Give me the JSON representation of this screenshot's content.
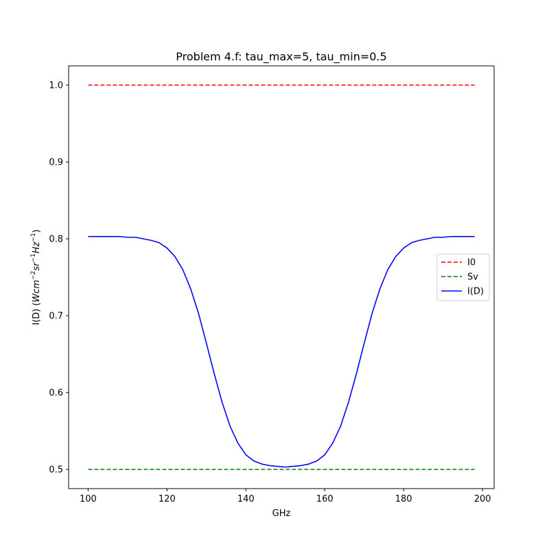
{
  "chart_data": {
    "type": "line",
    "title": "Problem 4.f: tau_max=5, tau_min=0.5",
    "xlabel": "GHz",
    "ylabel": {
      "prefix": "I(D) (",
      "parts": [
        {
          "text": "Wcm",
          "sup": "−2"
        },
        {
          "text": "sr",
          "sup": "−1"
        },
        {
          "text": "Hz",
          "sup": "−1"
        }
      ],
      "suffix": ")"
    },
    "xlim": [
      95.06,
      202.94
    ],
    "ylim": [
      0.475,
      1.025
    ],
    "xticks": [
      100,
      120,
      140,
      160,
      180,
      200
    ],
    "xtick_labels": [
      "100",
      "120",
      "140",
      "160",
      "180",
      "200"
    ],
    "yticks": [
      0.5,
      0.6,
      0.7,
      0.8,
      0.9,
      1.0
    ],
    "ytick_labels": [
      "0.5",
      "0.6",
      "0.7",
      "0.8",
      "0.9",
      "1.0"
    ],
    "grid": false,
    "legend_position": "center-right",
    "series": [
      {
        "name": "I0",
        "color": "#ff0000",
        "dash": "dashed",
        "x": [
          100,
          198
        ],
        "y": [
          1.0,
          1.0
        ]
      },
      {
        "name": "Sv",
        "color": "#008000",
        "dash": "dashed",
        "x": [
          100,
          198
        ],
        "y": [
          0.5,
          0.5
        ]
      },
      {
        "name": "I(D)",
        "color": "#0000ff",
        "dash": "solid",
        "x": [
          100,
          102,
          104,
          106,
          108,
          110,
          112,
          114,
          116,
          118,
          120,
          122,
          124,
          126,
          128,
          130,
          132,
          134,
          136,
          138,
          140,
          142,
          144,
          146,
          148,
          150,
          152,
          154,
          156,
          158,
          160,
          162,
          164,
          166,
          168,
          170,
          172,
          174,
          176,
          178,
          180,
          182,
          184,
          186,
          188,
          190,
          192,
          194,
          196,
          198
        ],
        "y": [
          0.803,
          0.803,
          0.803,
          0.803,
          0.803,
          0.802,
          0.802,
          0.8,
          0.798,
          0.795,
          0.788,
          0.777,
          0.76,
          0.735,
          0.703,
          0.664,
          0.624,
          0.587,
          0.556,
          0.534,
          0.519,
          0.511,
          0.507,
          0.505,
          0.504,
          0.503,
          0.504,
          0.505,
          0.507,
          0.511,
          0.519,
          0.534,
          0.556,
          0.587,
          0.624,
          0.664,
          0.703,
          0.735,
          0.76,
          0.777,
          0.788,
          0.795,
          0.798,
          0.8,
          0.802,
          0.802,
          0.803,
          0.803,
          0.803,
          0.803
        ]
      }
    ]
  }
}
